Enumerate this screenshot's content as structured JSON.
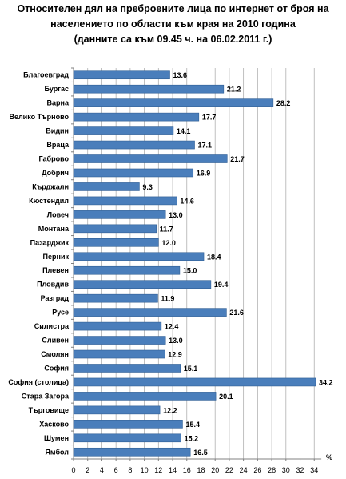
{
  "chart_data": {
    "type": "bar",
    "orientation": "horizontal",
    "title_lines": [
      "Относителен дял на преброените лица по интернет от броя на",
      "населението по области към края на 2010 година",
      "(данните са към 09.45 ч. на 06.02.2011 г.)"
    ],
    "unit_label": "%",
    "categories": [
      "Благоевград",
      "Бургас",
      "Варна",
      "Велико Търново",
      "Видин",
      "Враца",
      "Габрово",
      "Добрич",
      "Кърджали",
      "Кюстендил",
      "Ловеч",
      "Монтана",
      "Пазарджик",
      "Перник",
      "Плевен",
      "Пловдив",
      "Разград",
      "Русе",
      "Силистра",
      "Сливен",
      "Смолян",
      "София",
      "София (столица)",
      "Стара Загора",
      "Търговище",
      "Хасково",
      "Шумен",
      "Ямбол"
    ],
    "values": [
      13.6,
      21.2,
      28.2,
      17.7,
      14.1,
      17.1,
      21.7,
      16.9,
      9.3,
      14.6,
      13.0,
      11.7,
      12.0,
      18.4,
      15.0,
      19.4,
      11.9,
      21.6,
      12.4,
      13.0,
      12.9,
      15.1,
      34.2,
      20.1,
      12.2,
      15.4,
      15.2,
      16.5
    ],
    "data_labels": [
      "13.6",
      "21.2",
      "28.2",
      "17.7",
      "14.1",
      "17.1",
      "21.7",
      "16.9",
      "9.3",
      "14.6",
      "13.0",
      "11.7",
      "12.0",
      "18.4",
      "15.0",
      "19.4",
      "11.9",
      "21.6",
      "12.4",
      "13.0",
      "12.9",
      "15.1",
      "34.2",
      "20.1",
      "12.2",
      "15.4",
      "15.2",
      "16.5"
    ],
    "xticks": [
      0,
      2,
      4,
      6,
      8,
      10,
      12,
      14,
      16,
      18,
      20,
      22,
      24,
      26,
      28,
      30,
      32,
      34
    ],
    "xlim": [
      0,
      35
    ],
    "grid": "vertical",
    "bar_color": "#4a7ebb",
    "bar_edge_color": "#2f5e94"
  }
}
